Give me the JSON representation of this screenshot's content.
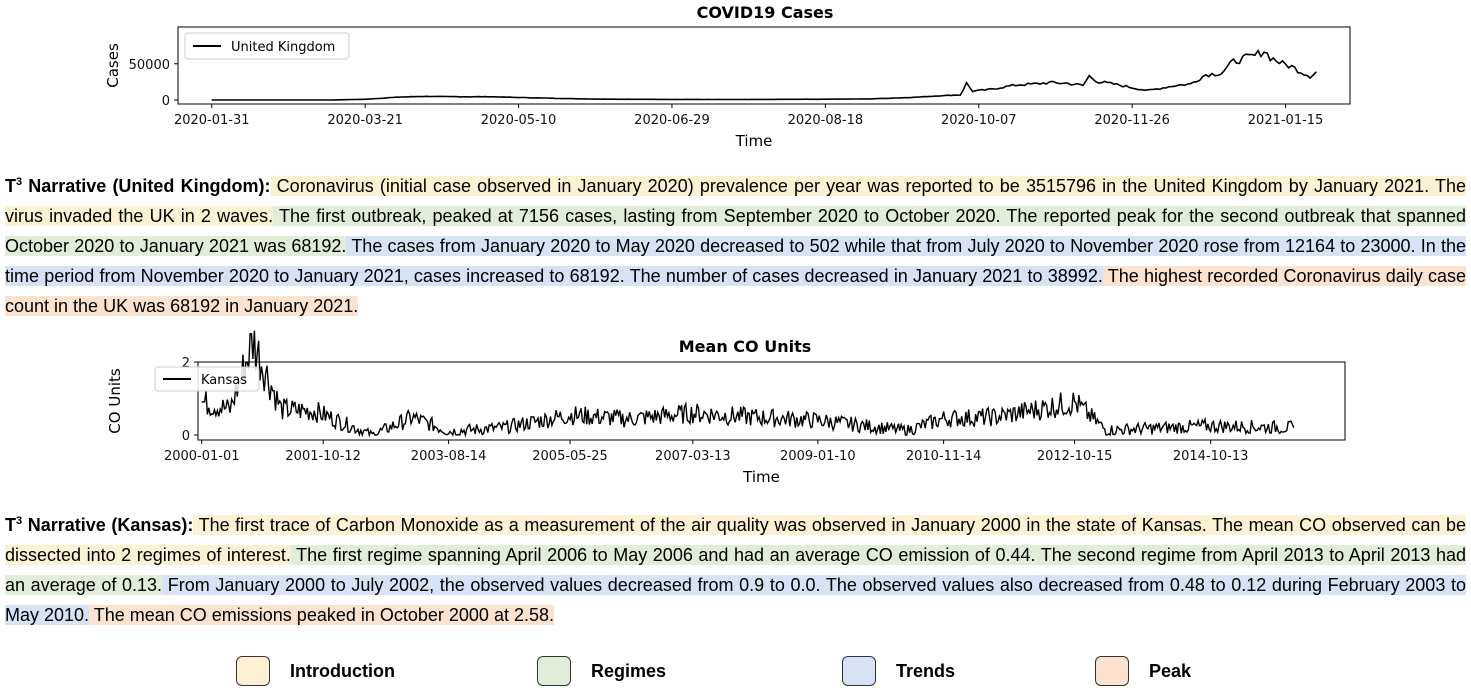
{
  "chart_data": [
    {
      "type": "line",
      "title": "COVID19 Cases",
      "xlabel": "Time",
      "ylabel": "Cases",
      "ylim": [
        0,
        70000
      ],
      "yticks": [
        "0",
        "50000"
      ],
      "xticks": [
        "2020-01-31",
        "2020-03-21",
        "2020-05-10",
        "2020-06-29",
        "2020-08-18",
        "2020-10-07",
        "2020-11-26",
        "2021-01-15"
      ],
      "legend": "top-left",
      "series": [
        {
          "name": "United Kingdom",
          "color": "#000000",
          "points": [
            [
              "2020-01-31",
              0
            ],
            [
              "2020-02-20",
              5
            ],
            [
              "2020-03-10",
              50
            ],
            [
              "2020-03-21",
              1000
            ],
            [
              "2020-04-01",
              4000
            ],
            [
              "2020-04-10",
              5000
            ],
            [
              "2020-04-20",
              4500
            ],
            [
              "2020-05-01",
              4500
            ],
            [
              "2020-05-10",
              3500
            ],
            [
              "2020-05-25",
              2000
            ],
            [
              "2020-06-05",
              1200
            ],
            [
              "2020-06-29",
              800
            ],
            [
              "2020-07-20",
              700
            ],
            [
              "2020-08-18",
              1100
            ],
            [
              "2020-09-01",
              1500
            ],
            [
              "2020-09-15",
              3500
            ],
            [
              "2020-09-25",
              6000
            ],
            [
              "2020-10-01",
              7000
            ],
            [
              "2020-10-03",
              23000
            ],
            [
              "2020-10-05",
              12164
            ],
            [
              "2020-10-10",
              14000
            ],
            [
              "2020-10-15",
              18000
            ],
            [
              "2020-10-20",
              21000
            ],
            [
              "2020-10-25",
              22000
            ],
            [
              "2020-10-30",
              24000
            ],
            [
              "2020-11-05",
              23000
            ],
            [
              "2020-11-10",
              20000
            ],
            [
              "2020-11-12",
              33000
            ],
            [
              "2020-11-15",
              25000
            ],
            [
              "2020-11-20",
              22000
            ],
            [
              "2020-11-26",
              17000
            ],
            [
              "2020-12-01",
              13000
            ],
            [
              "2020-12-05",
              16000
            ],
            [
              "2020-12-10",
              20000
            ],
            [
              "2020-12-15",
              22000
            ],
            [
              "2020-12-20",
              35000
            ],
            [
              "2020-12-25",
              37000
            ],
            [
              "2020-12-29",
              53000
            ],
            [
              "2021-01-02",
              58000
            ],
            [
              "2021-01-05",
              61000
            ],
            [
              "2021-01-08",
              68192
            ],
            [
              "2021-01-10",
              59000
            ],
            [
              "2021-01-14",
              50000
            ],
            [
              "2021-01-17",
              46000
            ],
            [
              "2021-01-20",
              39000
            ],
            [
              "2021-01-23",
              33000
            ],
            [
              "2021-01-25",
              38992
            ]
          ]
        }
      ]
    },
    {
      "type": "line",
      "title": "Mean CO Units",
      "xlabel": "Time",
      "ylabel": "CO Units",
      "ylim": [
        0,
        2
      ],
      "yticks": [
        "0",
        "2"
      ],
      "xticks": [
        "2000-01-01",
        "2001-10-12",
        "2003-08-14",
        "2005-05-25",
        "2007-03-13",
        "2009-01-10",
        "2010-11-14",
        "2012-10-15",
        "2014-10-13"
      ],
      "legend": "top-left",
      "series": [
        {
          "name": "Kansas",
          "color": "#000000",
          "points": [
            [
              "2000-01-01",
              0.9
            ],
            [
              "2000-06-01",
              0.7
            ],
            [
              "2000-10-01",
              2.58
            ],
            [
              "2001-03-01",
              0.7
            ],
            [
              "2001-09-01",
              0.65
            ],
            [
              "2002-07-01",
              0.0
            ],
            [
              "2003-02-01",
              0.48
            ],
            [
              "2003-08-14",
              0.1
            ],
            [
              "2004-06-01",
              0.2
            ],
            [
              "2005-05-25",
              0.55
            ],
            [
              "2006-04-01",
              0.44
            ],
            [
              "2007-03-13",
              0.6
            ],
            [
              "2008-01-01",
              0.5
            ],
            [
              "2009-01-10",
              0.4
            ],
            [
              "2010-05-01",
              0.12
            ],
            [
              "2010-11-14",
              0.45
            ],
            [
              "2011-09-01",
              0.5
            ],
            [
              "2012-10-15",
              0.9
            ],
            [
              "2013-04-01",
              0.13
            ],
            [
              "2014-10-13",
              0.25
            ],
            [
              "2016-01-01",
              0.2
            ]
          ]
        }
      ]
    }
  ],
  "narrative_uk": {
    "lead": "T",
    "lead_sup": "3",
    "lead_rest": " Narrative (United Kingdom):",
    "intro": " Coronavirus (initial case observed in January 2020) prevalence per year was reported to be 3515796 in the United Kingdom by January 2021. The virus invaded the UK in 2 waves.",
    "regimes": " The  first outbreak, peaked at 7156 cases, lasting from September 2020 to October 2020. The reported peak for the second outbreak that spanned October 2020 to January 2021 was 68192.",
    "trends": " The cases from January 2020 to May 2020 decreased to 502 while that from July 2020 to November 2020 rose from 12164 to 23000. In the time period from November 2020 to January 2021, cases increased to 68192. The number of cases decreased in January 2021 to 38992.",
    "peak": " The highest recorded Coronavirus daily case count in the UK was 68192 in January 2021."
  },
  "narrative_kansas": {
    "lead": "T",
    "lead_sup": "3",
    "lead_rest": " Narrative (Kansas):",
    "intro": " The first trace of Carbon Monoxide as a measurement of the air quality was observed in January 2000 in the state of Kansas. The mean CO observed can be dissected into 2 regimes of interest.",
    "regimes": " The first regime spanning April 2006 to May 2006 and had an average CO emission  of 0.44. The second regime from April 2013 to April 2013 had an average of 0.13.",
    "trends": " From January 2000 to July 2002, the observed values decreased from 0.9 to 0.0. The observed values also decreased from 0.48 to 0.12 during February 2003 to May 2010.",
    "peak": " The mean CO emissions peaked in October 2000 at 2.58."
  },
  "legend": [
    {
      "label": "Introduction",
      "color": "#fcf1d3"
    },
    {
      "label": "Regimes",
      "color": "#e1ecd9"
    },
    {
      "label": "Trends",
      "color": "#d8e2f5"
    },
    {
      "label": "Peak",
      "color": "#fbe3d0"
    }
  ]
}
